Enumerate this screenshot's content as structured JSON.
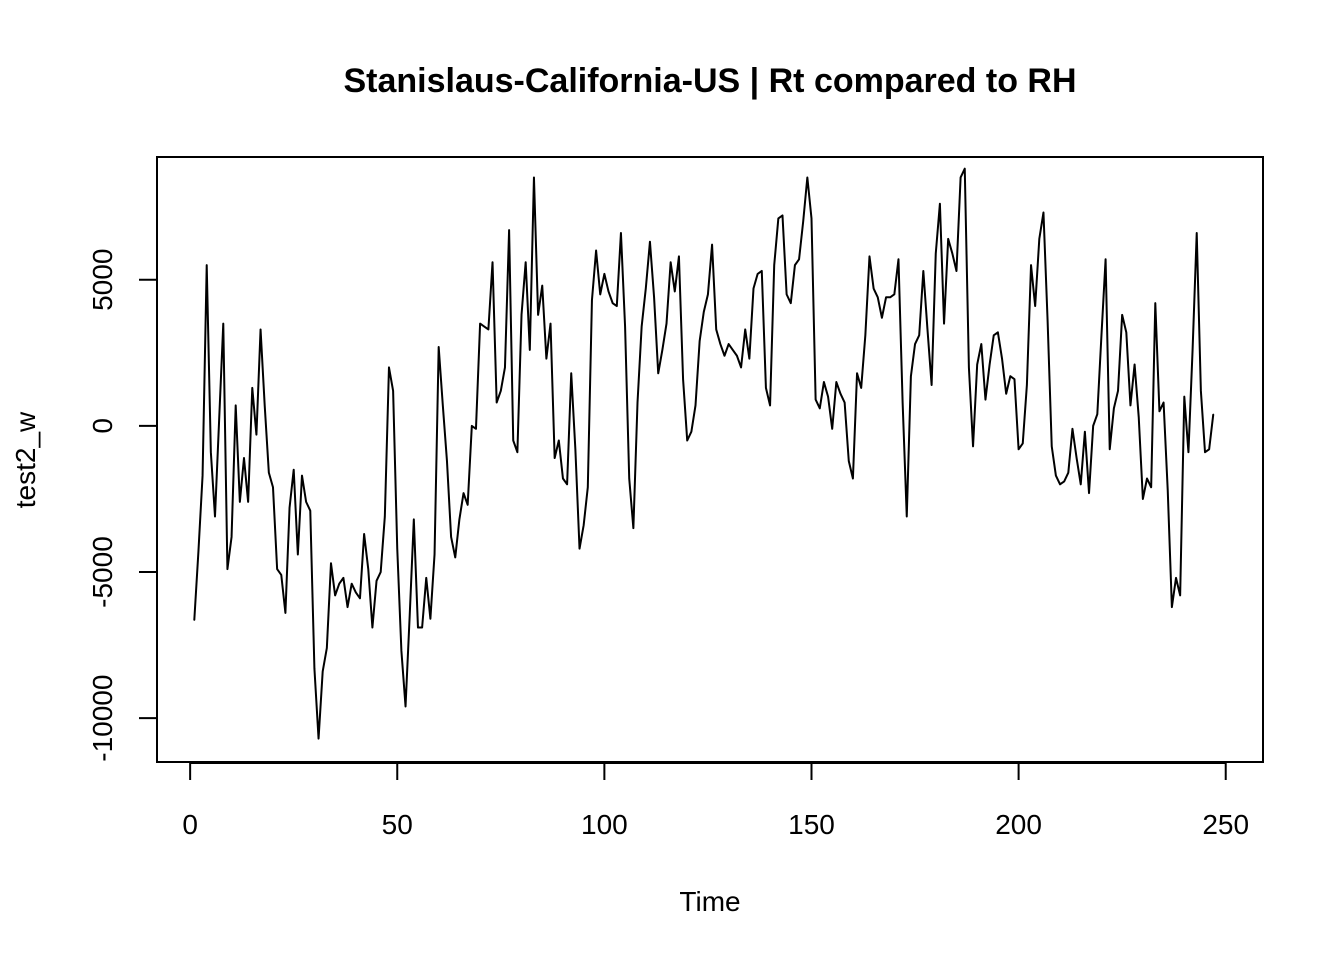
{
  "chart_data": {
    "type": "line",
    "title": "Stanislaus-California-US | Rt compared to RH",
    "xlabel": "Time",
    "ylabel": "test2_w",
    "xlim": [
      -8,
      259
    ],
    "ylim": [
      -11500,
      9200
    ],
    "x_ticks": [
      0,
      50,
      100,
      150,
      200,
      250
    ],
    "y_ticks": [
      -10000,
      -5000,
      0,
      5000
    ],
    "x_tick_labels": [
      "0",
      "50",
      "100",
      "150",
      "200",
      "250"
    ],
    "y_tick_labels": [
      "-10000",
      "-5000",
      "0",
      "5000"
    ],
    "grid": false,
    "legend": "none",
    "line_color": "#000000",
    "series": [
      {
        "x_start": 1,
        "x_step": 1,
        "values": [
          -6650,
          -4300,
          -1700,
          5500,
          -900,
          -3100,
          200,
          3500,
          -4900,
          -3800,
          700,
          -2600,
          -1100,
          -2600,
          1300,
          -300,
          3300,
          700,
          -1600,
          -2100,
          -4900,
          -5100,
          -6400,
          -2800,
          -1500,
          -4400,
          -1700,
          -2600,
          -2900,
          -8300,
          -10700,
          -8400,
          -7600,
          -4700,
          -5800,
          -5400,
          -5200,
          -6200,
          -5400,
          -5700,
          -5900,
          -3700,
          -4900,
          -6900,
          -5300,
          -5000,
          -3100,
          2000,
          1200,
          -4200,
          -7700,
          -9600,
          -6500,
          -3200,
          -6900,
          -6900,
          -5200,
          -6600,
          -4400,
          2700,
          700,
          -1200,
          -3800,
          -4500,
          -3200,
          -2300,
          -2700,
          0,
          -100,
          3500,
          3400,
          3300,
          5600,
          800,
          1200,
          2000,
          6700,
          -500,
          -900,
          3800,
          5600,
          2600,
          8500,
          3800,
          4800,
          2300,
          3500,
          -1100,
          -500,
          -1800,
          -2000,
          1800,
          -800,
          -4200,
          -3400,
          -2100,
          4300,
          6000,
          4500,
          5200,
          4600,
          4200,
          4100,
          6600,
          3400,
          -1800,
          -3500,
          800,
          3400,
          4700,
          6300,
          4400,
          1800,
          2600,
          3500,
          5600,
          4600,
          5800,
          1600,
          -500,
          -200,
          700,
          2900,
          3900,
          4500,
          6200,
          3300,
          2800,
          2400,
          2800,
          2600,
          2400,
          2000,
          3300,
          2300,
          4700,
          5200,
          5300,
          1300,
          700,
          5500,
          7100,
          7200,
          4500,
          4200,
          5500,
          5700,
          7000,
          8500,
          7100,
          900,
          600,
          1500,
          1000,
          -100,
          1500,
          1100,
          800,
          -1200,
          -1800,
          1800,
          1300,
          3100,
          5800,
          4700,
          4400,
          3700,
          4400,
          4400,
          4500,
          5700,
          800,
          -3100,
          1700,
          2800,
          3100,
          5300,
          3300,
          1400,
          5900,
          7600,
          3500,
          6400,
          5900,
          5300,
          8500,
          8800,
          2000,
          -700,
          2100,
          2800,
          900,
          2100,
          3100,
          3200,
          2300,
          1100,
          1700,
          1600,
          -800,
          -600,
          1400,
          5500,
          4100,
          6400,
          7300,
          3600,
          -700,
          -1700,
          -2000,
          -1900,
          -1600,
          -100,
          -1100,
          -2000,
          -200,
          -2300,
          0,
          400,
          3100,
          5700,
          -800,
          600,
          1200,
          3800,
          3200,
          700,
          2100,
          300,
          -2500,
          -1800,
          -2100,
          4200,
          500,
          800,
          -2200,
          -6200,
          -5200,
          -5800,
          1000,
          -900,
          2600,
          6600,
          1200,
          -900,
          -800,
          400
        ]
      }
    ]
  }
}
